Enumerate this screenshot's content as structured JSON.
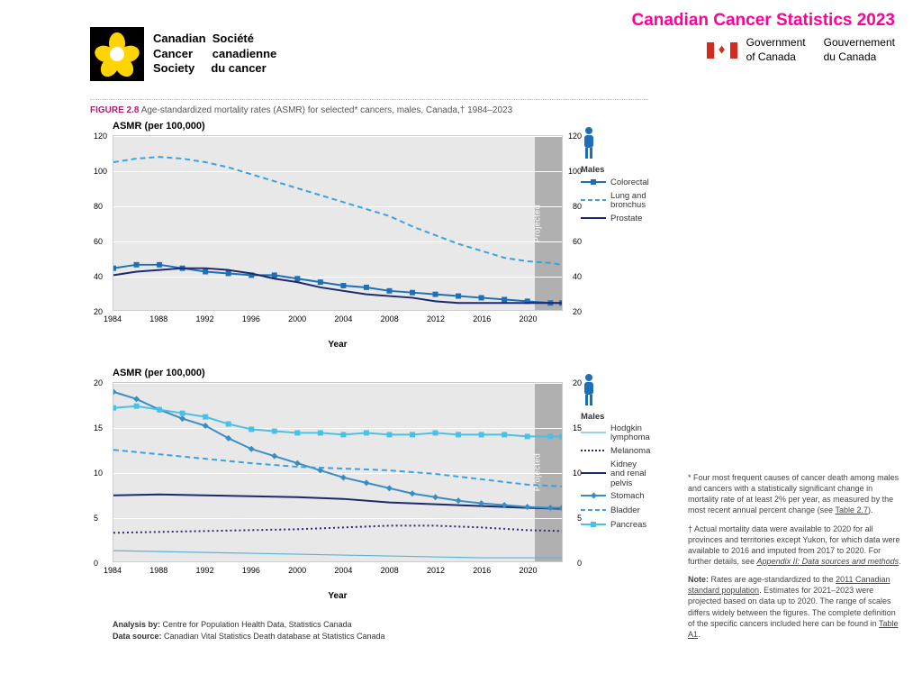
{
  "header": {
    "title": "Canadian Cancer Statistics 2023"
  },
  "ccs": {
    "line1_en": "Canadian",
    "line2_en": "Cancer",
    "line3_en": "Society",
    "line1_fr": "Société",
    "line2_fr": "canadienne",
    "line3_fr": "du cancer",
    "daffodil_color": "#ffd400"
  },
  "gov": {
    "line1_en": "Government",
    "line2_en": "of Canada",
    "line1_fr": "Gouvernement",
    "line2_fr": "du Canada",
    "flag_red": "#d52b1e"
  },
  "figure": {
    "label": "FIGURE 2.8",
    "caption": "Age-standardized mortality rates (ASMR) for selected* cancers, males, Canada,† 1984–2023"
  },
  "chart1": {
    "ytitle": "ASMR (per 100,000)",
    "type": "line",
    "xlabel": "Year",
    "xmin": 1984,
    "xmax": 2023,
    "xticks": [
      1984,
      1988,
      1992,
      1996,
      2000,
      2004,
      2008,
      2012,
      2016,
      2020
    ],
    "ymin": 20,
    "ymax": 120,
    "yticks": [
      20,
      40,
      60,
      80,
      100,
      120
    ],
    "projected_from": 2021,
    "projected_label": "Projected",
    "background": "#e8e8e8",
    "grid_color": "#ffffff",
    "legend_title": "Males",
    "person_color": "#1e6fb7",
    "series": [
      {
        "name": "Colorectal",
        "color": "#1e6fb7",
        "style": "square-line",
        "data": [
          [
            1984,
            44
          ],
          [
            1986,
            46
          ],
          [
            1988,
            46
          ],
          [
            1990,
            44
          ],
          [
            1992,
            42
          ],
          [
            1994,
            41
          ],
          [
            1996,
            40
          ],
          [
            1998,
            40
          ],
          [
            2000,
            38
          ],
          [
            2002,
            36
          ],
          [
            2004,
            34
          ],
          [
            2006,
            33
          ],
          [
            2008,
            31
          ],
          [
            2010,
            30
          ],
          [
            2012,
            29
          ],
          [
            2014,
            28
          ],
          [
            2016,
            27
          ],
          [
            2018,
            26
          ],
          [
            2020,
            25
          ],
          [
            2022,
            24
          ],
          [
            2023,
            24
          ]
        ]
      },
      {
        "name": "Lung and bronchus",
        "color": "#3aa2e0",
        "style": "dashed",
        "data": [
          [
            1984,
            105
          ],
          [
            1986,
            107
          ],
          [
            1988,
            108
          ],
          [
            1990,
            107
          ],
          [
            1992,
            105
          ],
          [
            1994,
            102
          ],
          [
            1996,
            98
          ],
          [
            1998,
            94
          ],
          [
            2000,
            90
          ],
          [
            2002,
            86
          ],
          [
            2004,
            82
          ],
          [
            2006,
            78
          ],
          [
            2008,
            74
          ],
          [
            2010,
            68
          ],
          [
            2012,
            63
          ],
          [
            2014,
            58
          ],
          [
            2016,
            54
          ],
          [
            2018,
            50
          ],
          [
            2020,
            48
          ],
          [
            2022,
            47
          ],
          [
            2023,
            46
          ]
        ]
      },
      {
        "name": "Prostate",
        "color": "#1a2a6c",
        "style": "solid",
        "data": [
          [
            1984,
            40
          ],
          [
            1986,
            42
          ],
          [
            1988,
            43
          ],
          [
            1990,
            44
          ],
          [
            1992,
            44
          ],
          [
            1994,
            43
          ],
          [
            1996,
            41
          ],
          [
            1998,
            38
          ],
          [
            2000,
            36
          ],
          [
            2002,
            33
          ],
          [
            2004,
            31
          ],
          [
            2006,
            29
          ],
          [
            2008,
            28
          ],
          [
            2010,
            27
          ],
          [
            2012,
            25
          ],
          [
            2014,
            24
          ],
          [
            2016,
            24
          ],
          [
            2018,
            24
          ],
          [
            2020,
            24
          ],
          [
            2022,
            24
          ],
          [
            2023,
            24
          ]
        ]
      }
    ]
  },
  "chart2": {
    "ytitle": "ASMR (per 100,000)",
    "type": "line",
    "xlabel": "Year",
    "xmin": 1984,
    "xmax": 2023,
    "xticks": [
      1984,
      1988,
      1992,
      1996,
      2000,
      2004,
      2008,
      2012,
      2016,
      2020
    ],
    "ymin": 0,
    "ymax": 20,
    "yticks": [
      0,
      5,
      10,
      15,
      20
    ],
    "projected_from": 2021,
    "projected_label": "Projected",
    "background": "#e8e8e8",
    "grid_color": "#ffffff",
    "legend_title": "Males",
    "person_color": "#1e6fb7",
    "series": [
      {
        "name": "Hodgkin lymphoma",
        "color": "#5ab4d6",
        "style": "thin-solid",
        "data": [
          [
            1984,
            1.2
          ],
          [
            1988,
            1.1
          ],
          [
            1992,
            1.0
          ],
          [
            1996,
            0.9
          ],
          [
            2000,
            0.8
          ],
          [
            2004,
            0.7
          ],
          [
            2008,
            0.6
          ],
          [
            2012,
            0.5
          ],
          [
            2016,
            0.4
          ],
          [
            2020,
            0.4
          ],
          [
            2023,
            0.4
          ]
        ]
      },
      {
        "name": "Melanoma",
        "color": "#2a2a7a",
        "style": "dotted",
        "data": [
          [
            1984,
            3.2
          ],
          [
            1988,
            3.3
          ],
          [
            1992,
            3.4
          ],
          [
            1996,
            3.5
          ],
          [
            2000,
            3.6
          ],
          [
            2004,
            3.8
          ],
          [
            2008,
            4.0
          ],
          [
            2012,
            4.0
          ],
          [
            2016,
            3.8
          ],
          [
            2020,
            3.5
          ],
          [
            2023,
            3.4
          ]
        ]
      },
      {
        "name": "Kidney and renal pelvis",
        "color": "#1a2a6c",
        "style": "solid",
        "data": [
          [
            1984,
            7.4
          ],
          [
            1988,
            7.5
          ],
          [
            1992,
            7.4
          ],
          [
            1996,
            7.3
          ],
          [
            2000,
            7.2
          ],
          [
            2004,
            7.0
          ],
          [
            2008,
            6.6
          ],
          [
            2012,
            6.4
          ],
          [
            2016,
            6.2
          ],
          [
            2020,
            6.0
          ],
          [
            2023,
            5.9
          ]
        ]
      },
      {
        "name": "Stomach",
        "color": "#3a8cc4",
        "style": "diamond-line",
        "data": [
          [
            1984,
            19.0
          ],
          [
            1986,
            18.2
          ],
          [
            1988,
            17.0
          ],
          [
            1990,
            16.0
          ],
          [
            1992,
            15.2
          ],
          [
            1994,
            13.8
          ],
          [
            1996,
            12.6
          ],
          [
            1998,
            11.8
          ],
          [
            2000,
            11.0
          ],
          [
            2002,
            10.2
          ],
          [
            2004,
            9.4
          ],
          [
            2006,
            8.8
          ],
          [
            2008,
            8.2
          ],
          [
            2010,
            7.6
          ],
          [
            2012,
            7.2
          ],
          [
            2014,
            6.8
          ],
          [
            2016,
            6.5
          ],
          [
            2018,
            6.3
          ],
          [
            2020,
            6.1
          ],
          [
            2022,
            6.0
          ],
          [
            2023,
            6.0
          ]
        ]
      },
      {
        "name": "Bladder",
        "color": "#3aa2e0",
        "style": "dashed",
        "data": [
          [
            1984,
            12.5
          ],
          [
            1988,
            12.0
          ],
          [
            1992,
            11.5
          ],
          [
            1996,
            11.0
          ],
          [
            2000,
            10.6
          ],
          [
            2004,
            10.4
          ],
          [
            2008,
            10.2
          ],
          [
            2012,
            9.8
          ],
          [
            2016,
            9.2
          ],
          [
            2020,
            8.6
          ],
          [
            2023,
            8.4
          ]
        ]
      },
      {
        "name": "Pancreas",
        "color": "#4ac0e4",
        "style": "square-line",
        "data": [
          [
            1984,
            17.2
          ],
          [
            1986,
            17.4
          ],
          [
            1988,
            17.0
          ],
          [
            1990,
            16.6
          ],
          [
            1992,
            16.2
          ],
          [
            1994,
            15.4
          ],
          [
            1996,
            14.8
          ],
          [
            1998,
            14.6
          ],
          [
            2000,
            14.4
          ],
          [
            2002,
            14.4
          ],
          [
            2004,
            14.2
          ],
          [
            2006,
            14.4
          ],
          [
            2008,
            14.2
          ],
          [
            2010,
            14.2
          ],
          [
            2012,
            14.4
          ],
          [
            2014,
            14.2
          ],
          [
            2016,
            14.2
          ],
          [
            2018,
            14.2
          ],
          [
            2020,
            14.0
          ],
          [
            2022,
            14.0
          ],
          [
            2023,
            14.0
          ]
        ]
      }
    ]
  },
  "analysis": {
    "by_label": "Analysis by:",
    "by_text": "Centre for Population Health Data, Statistics Canada",
    "src_label": "Data source:",
    "src_text": "Canadian Vital Statistics Death database at Statistics Canada"
  },
  "notes": {
    "n1": "* Four most frequent causes of cancer death among males and cancers with a statistically significant change in mortality rate of at least 2% per year, as measured by the most recent annual percent change (see ",
    "n1_link": "Table 2.7",
    "n1_end": ").",
    "n2": "† Actual mortality data were available to 2020 for all provinces and territories except Yukon, for which data were available to 2016 and imputed from 2017 to 2020. For further details, see ",
    "n2_link": "Appendix II: Data sources and methods",
    "n2_end": ".",
    "n3_label": "Note:",
    "n3": " Rates are age-standardized to the ",
    "n3_link": "2011 Canadian standard population",
    "n3_end": ". Estimates for 2021–2023 were projected based on data up to 2020. The range of scales differs widely between the figures. The complete definition of the specific cancers included here can be found in ",
    "n3_link2": "Table A1",
    "n3_end2": "."
  }
}
